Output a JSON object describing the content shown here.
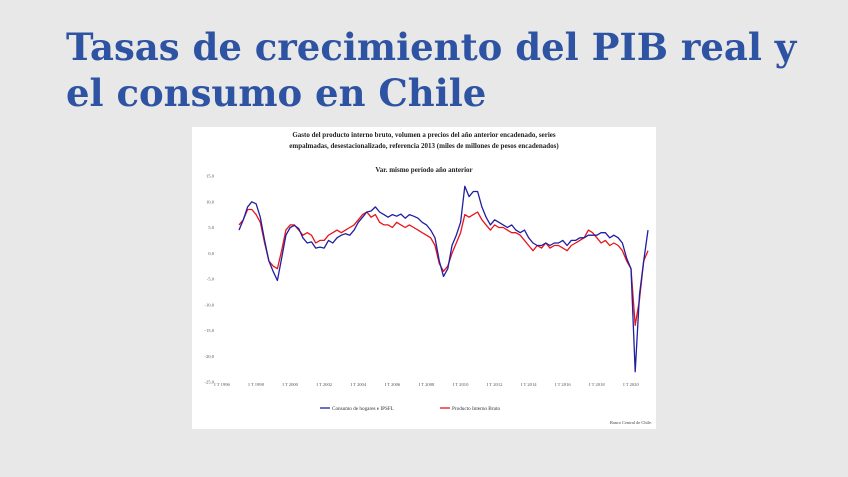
{
  "slide": {
    "title": "Tasas de crecimiento del PIB real y el consumo en Chile"
  },
  "colors": {
    "title": "#2d53a2",
    "consumo": "#1f1fa0",
    "pib": "#e8141c",
    "background": "#e8e8e8"
  },
  "chart_data": {
    "type": "line",
    "title_line1": "Gasto del producto interno bruto, volumen a precios del año anterior encadenado, series",
    "title_line2": "empalmadas, desestacionalizado, referencia 2013 (miles de millones de pesos encadenados)",
    "subtitle": "Var. mismo período año anterior",
    "ylim": [
      -25,
      15
    ],
    "yticks": [
      "15,0",
      "10,0",
      "5,0",
      "0,0",
      "-5,0",
      "-10,0",
      "-15,0",
      "-20,0",
      "-25,0"
    ],
    "ytick_values": [
      15,
      10,
      5,
      0,
      -5,
      -10,
      -15,
      -20,
      -25
    ],
    "xlim": [
      1996,
      2021
    ],
    "xticks": [
      "I T 1996",
      "I T 1998",
      "I T 2000",
      "I T 2002",
      "I T 2004",
      "I T 2006",
      "I T 2008",
      "I T 2010",
      "I T 2012",
      "I T 2014",
      "I T 2016",
      "I T 2018",
      "I T 2020"
    ],
    "xtick_values": [
      1996,
      1998,
      2000,
      2002,
      2004,
      2006,
      2008,
      2010,
      2012,
      2014,
      2016,
      2018,
      2020
    ],
    "legend_placement": "bottom",
    "grid": false,
    "source": "Banco Central de Chile.",
    "series": [
      {
        "name": "Consumo de hogares e IPSFL",
        "color": "#1f1fa0",
        "x": [
          1997,
          1997.25,
          1997.5,
          1997.75,
          1998,
          1998.25,
          1998.5,
          1998.75,
          1999,
          1999.25,
          1999.5,
          1999.75,
          2000,
          2000.25,
          2000.5,
          2000.75,
          2001,
          2001.25,
          2001.5,
          2001.75,
          2002,
          2002.25,
          2002.5,
          2002.75,
          2003,
          2003.25,
          2003.5,
          2003.75,
          2004,
          2004.25,
          2004.5,
          2004.75,
          2005,
          2005.25,
          2005.5,
          2005.75,
          2006,
          2006.25,
          2006.5,
          2006.75,
          2007,
          2007.25,
          2007.5,
          2007.75,
          2008,
          2008.25,
          2008.5,
          2008.75,
          2009,
          2009.25,
          2009.5,
          2009.75,
          2010,
          2010.25,
          2010.5,
          2010.75,
          2011,
          2011.25,
          2011.5,
          2011.75,
          2012,
          2012.25,
          2012.5,
          2012.75,
          2013,
          2013.25,
          2013.5,
          2013.75,
          2014,
          2014.25,
          2014.5,
          2014.75,
          2015,
          2015.25,
          2015.5,
          2015.75,
          2016,
          2016.25,
          2016.5,
          2016.75,
          2017,
          2017.25,
          2017.5,
          2017.75,
          2018,
          2018.25,
          2018.5,
          2018.75,
          2019,
          2019.25,
          2019.5,
          2019.75,
          2020,
          2020.25,
          2020.5,
          2020.75,
          2021
        ],
        "values": [
          4.5,
          6.5,
          9.0,
          10.0,
          9.6,
          7.0,
          2.5,
          -1.5,
          -3.5,
          -5.3,
          -1.0,
          3.5,
          5.0,
          5.4,
          4.8,
          3.0,
          2.0,
          2.2,
          1.0,
          1.2,
          1.0,
          2.5,
          2.0,
          3.0,
          3.5,
          3.8,
          3.5,
          4.5,
          6.0,
          7.0,
          8.0,
          8.2,
          9.0,
          8.0,
          7.5,
          7.0,
          7.5,
          7.2,
          7.6,
          6.8,
          7.5,
          7.2,
          6.8,
          6.0,
          5.5,
          4.5,
          3.0,
          -1.5,
          -4.5,
          -3.0,
          1.5,
          3.5,
          6.0,
          13.0,
          11.0,
          12.0,
          12.0,
          9.0,
          7.0,
          5.5,
          6.5,
          6.0,
          5.5,
          5.0,
          5.5,
          4.5,
          4.0,
          4.5,
          3.0,
          2.0,
          1.5,
          1.5,
          2.0,
          1.5,
          2.0,
          2.0,
          2.5,
          1.5,
          2.5,
          2.5,
          3.0,
          3.0,
          3.5,
          3.5,
          3.5,
          4.0,
          4.0,
          3.0,
          3.5,
          3.0,
          2.0,
          -1.0,
          -3.0,
          -23.0,
          -8.0,
          -1.5,
          4.5
        ]
      },
      {
        "name": "Producto Interno Bruto",
        "color": "#e8141c",
        "x": [
          1997,
          1997.25,
          1997.5,
          1997.75,
          1998,
          1998.25,
          1998.5,
          1998.75,
          1999,
          1999.25,
          1999.5,
          1999.75,
          2000,
          2000.25,
          2000.5,
          2000.75,
          2001,
          2001.25,
          2001.5,
          2001.75,
          2002,
          2002.25,
          2002.5,
          2002.75,
          2003,
          2003.25,
          2003.5,
          2003.75,
          2004,
          2004.25,
          2004.5,
          2004.75,
          2005,
          2005.25,
          2005.5,
          2005.75,
          2006,
          2006.25,
          2006.5,
          2006.75,
          2007,
          2007.25,
          2007.5,
          2007.75,
          2008,
          2008.25,
          2008.5,
          2008.75,
          2009,
          2009.25,
          2009.5,
          2009.75,
          2010,
          2010.25,
          2010.5,
          2010.75,
          2011,
          2011.25,
          2011.5,
          2011.75,
          2012,
          2012.25,
          2012.5,
          2012.75,
          2013,
          2013.25,
          2013.5,
          2013.75,
          2014,
          2014.25,
          2014.5,
          2014.75,
          2015,
          2015.25,
          2015.5,
          2015.75,
          2016,
          2016.25,
          2016.5,
          2016.75,
          2017,
          2017.25,
          2017.5,
          2017.75,
          2018,
          2018.25,
          2018.5,
          2018.75,
          2019,
          2019.25,
          2019.5,
          2019.75,
          2020,
          2020.25,
          2020.5,
          2020.75,
          2021
        ],
        "values": [
          5.5,
          6.5,
          8.5,
          8.5,
          7.5,
          6.0,
          2.0,
          -1.5,
          -2.5,
          -3.0,
          0.5,
          4.5,
          5.5,
          5.5,
          4.5,
          3.5,
          4.0,
          3.5,
          2.0,
          2.5,
          2.5,
          3.5,
          4.0,
          4.5,
          4.0,
          4.5,
          5.0,
          5.5,
          6.5,
          7.5,
          8.0,
          7.0,
          7.5,
          6.0,
          5.5,
          5.5,
          5.0,
          6.0,
          5.5,
          5.0,
          5.5,
          5.0,
          4.5,
          4.0,
          3.5,
          3.0,
          1.5,
          -2.0,
          -3.5,
          -2.5,
          0.0,
          2.0,
          4.0,
          7.5,
          7.0,
          7.5,
          8.0,
          6.5,
          5.5,
          4.5,
          5.5,
          5.0,
          5.0,
          4.5,
          4.0,
          4.0,
          3.5,
          2.5,
          1.5,
          0.5,
          1.5,
          1.0,
          2.0,
          1.0,
          1.5,
          1.5,
          1.0,
          0.5,
          1.5,
          2.0,
          2.5,
          3.0,
          4.5,
          4.0,
          3.0,
          2.0,
          2.5,
          1.5,
          2.0,
          1.5,
          0.5,
          -1.5,
          -3.0,
          -14.0,
          -9.0,
          -1.5,
          0.5
        ]
      }
    ]
  }
}
